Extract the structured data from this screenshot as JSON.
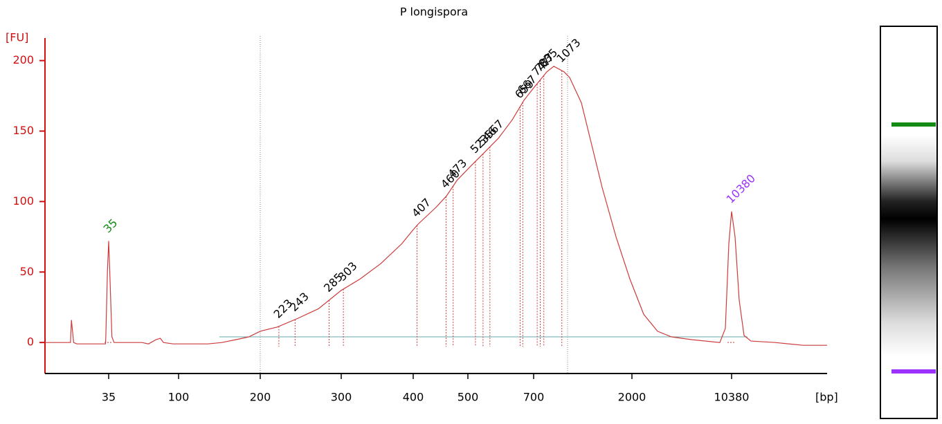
{
  "chart_data": {
    "type": "line",
    "title": "P longispora",
    "y_label": "[FU]",
    "x_label": "[bp]",
    "x": [
      15,
      23,
      23.3,
      24,
      25,
      34,
      34.1,
      34.6,
      35,
      36,
      38,
      40,
      66,
      72,
      79,
      83,
      86,
      95,
      136,
      153,
      170,
      186,
      200,
      221,
      246,
      272,
      300,
      326,
      355,
      384,
      400,
      409,
      442,
      461,
      480,
      508,
      551,
      593,
      635,
      671,
      698,
      874,
      966,
      1103,
      1176,
      1332,
      1469,
      1606,
      1789,
      1973,
      2989,
      4153,
      5317,
      7063,
      9390,
      9856,
      10147,
      10380,
      10547,
      10748,
      10983,
      11317,
      12489,
      13828,
      15000
    ],
    "values": [
      0,
      0,
      16,
      0,
      -1,
      -1,
      4,
      50,
      72,
      50,
      4,
      0,
      0,
      -1,
      2,
      3,
      0,
      -1,
      -1,
      0,
      2,
      4,
      8,
      11,
      17,
      24,
      37,
      45,
      56,
      70,
      80,
      84,
      96,
      104,
      115,
      125,
      135,
      145,
      158,
      172,
      180,
      192,
      196,
      192,
      188,
      170,
      140,
      110,
      75,
      45,
      20,
      8,
      4,
      2,
      0,
      10,
      70,
      93,
      75,
      30,
      5,
      1,
      0,
      -2,
      -2
    ],
    "color": "#cc3b3b",
    "xlim": [
      15,
      15000
    ],
    "xticks": [
      35,
      100,
      200,
      300,
      400,
      500,
      700,
      2000,
      10380
    ],
    "ylim": [
      -22,
      216
    ],
    "yticks": [
      0,
      50,
      100,
      150,
      200
    ],
    "peaks": [
      223,
      243,
      285,
      303,
      407,
      460,
      473,
      523,
      546,
      567,
      659,
      667,
      747,
      787,
      835,
      1073
    ],
    "markers": [
      35,
      10380
    ],
    "marker_colors": [
      "#138a13",
      "#9b30ff"
    ],
    "axis_color": "#d01010"
  }
}
